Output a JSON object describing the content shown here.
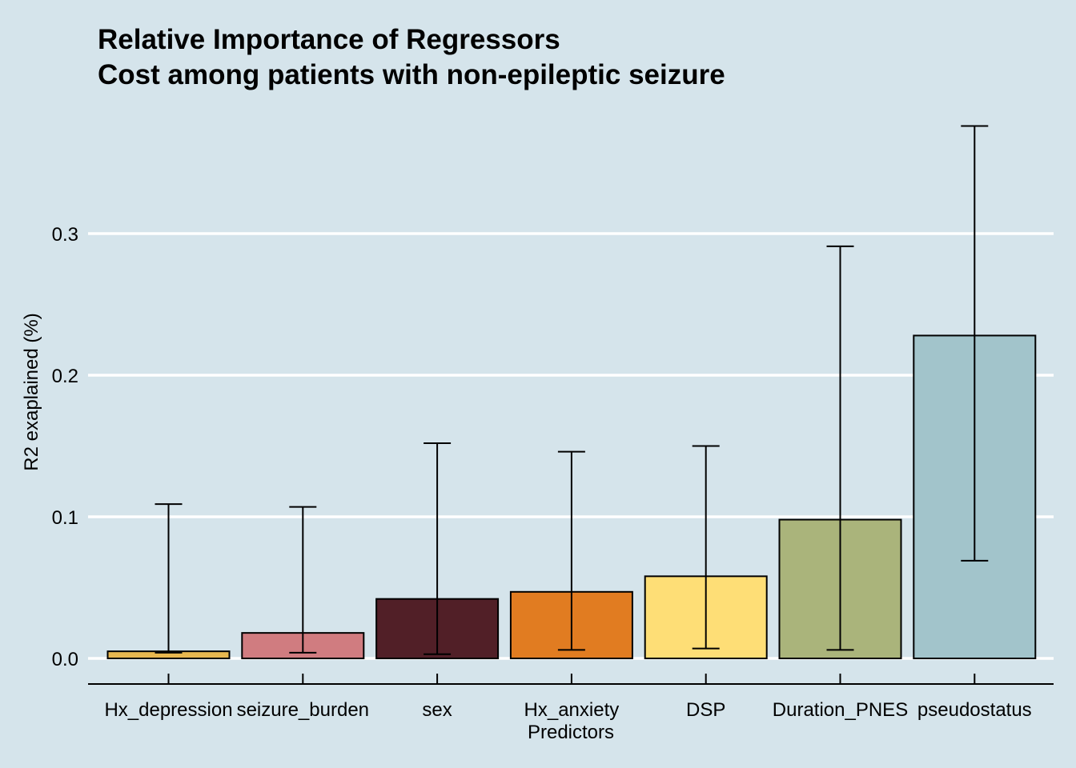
{
  "chart_data": {
    "type": "bar",
    "title": "Relative Importance of Regressors",
    "subtitle": "Cost among patients with non-epileptic seizure",
    "xlabel": "Predictors",
    "ylabel": "R2 exaplained (%)",
    "categories": [
      "Hx_depression",
      "seizure_burden",
      "sex",
      "Hx_anxiety",
      "DSP",
      "Duration_PNES",
      "pseudostatus"
    ],
    "values": [
      0.005,
      0.018,
      0.042,
      0.047,
      0.058,
      0.098,
      0.228
    ],
    "error_lower": [
      0.004,
      0.004,
      0.003,
      0.006,
      0.007,
      0.006,
      0.069
    ],
    "error_upper": [
      0.109,
      0.107,
      0.152,
      0.146,
      0.15,
      0.291,
      0.376
    ],
    "colors": [
      "#e8b74f",
      "#d07c80",
      "#511f27",
      "#e17c21",
      "#fede76",
      "#aab47b",
      "#a2c4cb"
    ],
    "yticks": [
      0.0,
      0.1,
      0.2,
      0.3
    ],
    "ytick_labels": [
      "0.0",
      "0.1",
      "0.2",
      "0.3"
    ],
    "ylim": [
      -0.018,
      0.395
    ],
    "grid": "horizontal-major",
    "background_color": "#d5e4eb",
    "grid_color": "#ffffff"
  }
}
